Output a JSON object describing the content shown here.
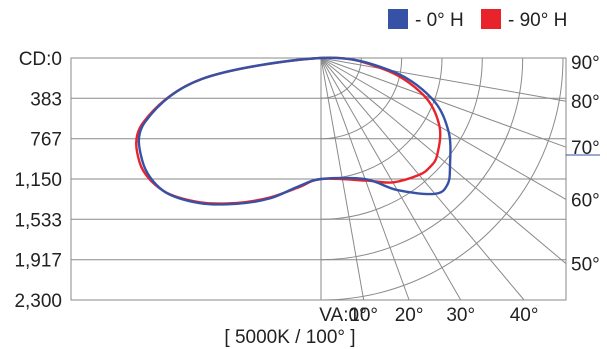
{
  "chart_data": {
    "type": "polar",
    "legend": {
      "placement": "top-right",
      "entries": [
        {
          "label": "- 0° H",
          "color": "#3652a6"
        },
        {
          "label": "- 90° H",
          "color": "#e8232b"
        }
      ]
    },
    "radial_ticks": [
      "CD:0",
      "383",
      "767",
      "1,150",
      "1,533",
      "1,917",
      "2,300"
    ],
    "radial_values": [
      0,
      383,
      767,
      1150,
      1533,
      1917,
      2300
    ],
    "r_max": 2300,
    "angle_ticks_bottom": [
      "VA:0°",
      "10°",
      "20°",
      "30°",
      "40°"
    ],
    "angle_ticks_right": [
      "50°",
      "60°",
      "70°",
      "80°",
      "90°"
    ],
    "footer": "[ 5000K / 100° ]",
    "series": [
      {
        "name": "- 0° H",
        "color": "#3652a6",
        "points": [
          {
            "angle": 0,
            "cd": 1150
          },
          {
            "angle": 20,
            "cd": 1225
          },
          {
            "angle": 30,
            "cd": 1450
          },
          {
            "angle": 40,
            "cd": 1685
          },
          {
            "angle": 45,
            "cd": 1700
          },
          {
            "angle": 50,
            "cd": 1600
          },
          {
            "angle": 60,
            "cd": 1400
          },
          {
            "angle": 70,
            "cd": 1120
          },
          {
            "angle": 80,
            "cd": 660
          },
          {
            "angle": 90,
            "cd": 0
          },
          {
            "angle": 100,
            "cd": 1150
          },
          {
            "angle": 110,
            "cd": 1780
          },
          {
            "angle": 120,
            "cd": 1960
          },
          {
            "angle": 130,
            "cd": 1960
          },
          {
            "angle": 140,
            "cd": 1800
          },
          {
            "angle": 150,
            "cd": 1600
          },
          {
            "angle": 160,
            "cd": 1420
          },
          {
            "angle": 170,
            "cd": 1240
          },
          {
            "angle": 180,
            "cd": 1150
          }
        ]
      },
      {
        "name": "- 90° H",
        "color": "#e8232b",
        "points": [
          {
            "angle": 0,
            "cd": 1150
          },
          {
            "angle": 20,
            "cd": 1240
          },
          {
            "angle": 30,
            "cd": 1365
          },
          {
            "angle": 40,
            "cd": 1450
          },
          {
            "angle": 45,
            "cd": 1465
          },
          {
            "angle": 50,
            "cd": 1440
          },
          {
            "angle": 60,
            "cd": 1300
          },
          {
            "angle": 70,
            "cd": 1040
          },
          {
            "angle": 80,
            "cd": 600
          },
          {
            "angle": 90,
            "cd": 0
          },
          {
            "angle": 100,
            "cd": 1150
          },
          {
            "angle": 110,
            "cd": 1800
          },
          {
            "angle": 120,
            "cd": 1990
          },
          {
            "angle": 130,
            "cd": 1960
          },
          {
            "angle": 140,
            "cd": 1790
          },
          {
            "angle": 150,
            "cd": 1590
          },
          {
            "angle": 160,
            "cd": 1410
          },
          {
            "angle": 170,
            "cd": 1250
          },
          {
            "angle": 180,
            "cd": 1150
          }
        ]
      }
    ]
  }
}
